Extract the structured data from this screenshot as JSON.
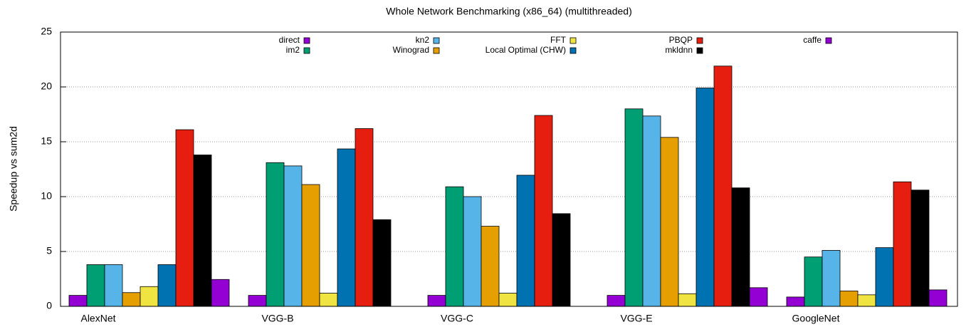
{
  "chart_data": {
    "type": "bar",
    "title": "Whole Network Benchmarking (x86_64) (multithreaded)",
    "y_label": "Speedup vs sum2d",
    "categories": [
      "AlexNet",
      "VGG-B",
      "VGG-C",
      "VGG-E",
      "GoogleNet"
    ],
    "series": [
      {
        "name": "direct",
        "color": "#9400d3",
        "values": [
          1.0,
          1.0,
          1.0,
          1.0,
          0.85
        ]
      },
      {
        "name": "im2",
        "color": "#009e73",
        "values": [
          3.8,
          13.1,
          10.9,
          18.0,
          4.5
        ]
      },
      {
        "name": "kn2",
        "color": "#56b4e9",
        "values": [
          3.8,
          12.8,
          10.0,
          17.35,
          5.1
        ]
      },
      {
        "name": "Winograd",
        "color": "#e69f00",
        "values": [
          1.25,
          11.1,
          7.3,
          15.4,
          1.4
        ]
      },
      {
        "name": "FFT",
        "color": "#f0e442",
        "values": [
          1.8,
          1.2,
          1.2,
          1.15,
          1.05
        ]
      },
      {
        "name": "Local Optimal (CHW)",
        "color": "#0072b2",
        "values": [
          3.8,
          14.35,
          11.95,
          19.9,
          5.35
        ]
      },
      {
        "name": "PBQP",
        "color": "#e51e10",
        "values": [
          16.1,
          16.2,
          17.4,
          21.9,
          11.35
        ]
      },
      {
        "name": "mkldnn",
        "color": "#000000",
        "values": [
          13.8,
          7.9,
          8.45,
          10.8,
          10.6
        ]
      },
      {
        "name": "caffe",
        "color": "#9400d3",
        "values": [
          2.45,
          null,
          null,
          1.7,
          1.5
        ]
      }
    ],
    "ylim": [
      0,
      25
    ],
    "yticks": [
      0,
      5,
      10,
      15,
      20,
      25
    ],
    "grid": true,
    "legend": "top"
  }
}
